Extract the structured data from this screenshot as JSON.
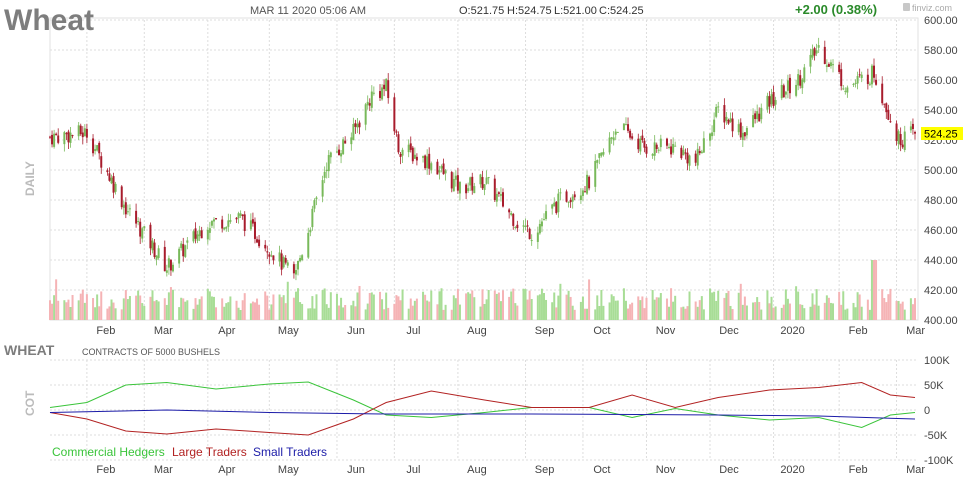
{
  "header": {
    "symbol": "Wheat",
    "datetime": "MAR 11 2020 05:06 AM",
    "open": "O:521.75",
    "high": "H:524.75",
    "low": "L:521.00",
    "close": "C:524.25",
    "change": "+2.00 (0.38%)",
    "brand": "finviz.com"
  },
  "colors": {
    "up": "#78b95a",
    "down": "#a81c2c",
    "vol_up": "#a8dd96",
    "vol_down": "#f5b3b5",
    "price_label_bg": "#ffff00",
    "commercial": "#3ac43a",
    "large": "#b22222",
    "small": "#1c1ca8",
    "change": "#2a8a2a"
  },
  "chart_data": [
    {
      "type": "candlestick",
      "ylabel": "DAILY",
      "y_ticks": [
        "600.00",
        "580.00",
        "560.00",
        "540.00",
        "520.00",
        "500.00",
        "480.00",
        "460.00",
        "440.00",
        "420.00",
        "400.00"
      ],
      "ylim": [
        400,
        600
      ],
      "x_ticks": [
        "Feb",
        "Mar",
        "Apr",
        "May",
        "Jun",
        "Jul",
        "Aug",
        "Sep",
        "Oct",
        "Nov",
        "Dec",
        "2020",
        "Feb",
        "Mar"
      ],
      "last_price_label": "524.25",
      "grid": true,
      "trend_points": [
        {
          "date": "2019-01-14",
          "close": 522
        },
        {
          "date": "2019-02-01",
          "close": 525
        },
        {
          "date": "2019-02-20",
          "close": 475
        },
        {
          "date": "2019-03-12",
          "close": 435
        },
        {
          "date": "2019-04-01",
          "close": 465
        },
        {
          "date": "2019-04-17",
          "close": 468
        },
        {
          "date": "2019-05-01",
          "close": 448
        },
        {
          "date": "2019-05-13",
          "close": 428
        },
        {
          "date": "2019-05-20",
          "close": 460
        },
        {
          "date": "2019-05-29",
          "close": 505
        },
        {
          "date": "2019-06-11",
          "close": 525
        },
        {
          "date": "2019-06-20",
          "close": 550
        },
        {
          "date": "2019-06-27",
          "close": 555
        },
        {
          "date": "2019-07-03",
          "close": 515
        },
        {
          "date": "2019-07-19",
          "close": 505
        },
        {
          "date": "2019-08-02",
          "close": 488
        },
        {
          "date": "2019-08-14",
          "close": 493
        },
        {
          "date": "2019-08-30",
          "close": 465
        },
        {
          "date": "2019-09-06",
          "close": 458
        },
        {
          "date": "2019-09-20",
          "close": 480
        },
        {
          "date": "2019-10-04",
          "close": 492
        },
        {
          "date": "2019-10-18",
          "close": 530
        },
        {
          "date": "2019-10-31",
          "close": 515
        },
        {
          "date": "2019-11-15",
          "close": 515
        },
        {
          "date": "2019-11-25",
          "close": 505
        },
        {
          "date": "2019-12-06",
          "close": 540
        },
        {
          "date": "2019-12-18",
          "close": 525
        },
        {
          "date": "2019-12-31",
          "close": 545
        },
        {
          "date": "2020-01-14",
          "close": 560
        },
        {
          "date": "2020-01-24",
          "close": 582
        },
        {
          "date": "2020-02-07",
          "close": 555
        },
        {
          "date": "2020-02-20",
          "close": 565
        },
        {
          "date": "2020-03-03",
          "close": 520
        },
        {
          "date": "2020-03-11",
          "close": 524.25
        }
      ],
      "volume_panel": true
    },
    {
      "type": "line",
      "title": "WHEAT",
      "subtitle": "CONTRACTS OF 5000 BUSHELS",
      "ylabel": "COT",
      "y_ticks": [
        "100K",
        "50K",
        "0",
        "-50K",
        "-100K"
      ],
      "ylim": [
        -100000,
        100000
      ],
      "x_ticks": [
        "Feb",
        "Mar",
        "Apr",
        "May",
        "Jun",
        "Jul",
        "Aug",
        "Sep",
        "Oct",
        "Nov",
        "Dec",
        "2020",
        "Feb",
        "Mar"
      ],
      "legend": [
        "Commercial Hedgers",
        "Large Traders",
        "Small Traders"
      ],
      "series": [
        {
          "name": "Commercial Hedgers",
          "points": [
            {
              "date": "2019-01-14",
              "value": 5000
            },
            {
              "date": "2019-02-01",
              "value": 15000
            },
            {
              "date": "2019-02-20",
              "value": 50000
            },
            {
              "date": "2019-03-12",
              "value": 55000
            },
            {
              "date": "2019-04-05",
              "value": 42000
            },
            {
              "date": "2019-05-01",
              "value": 52000
            },
            {
              "date": "2019-05-20",
              "value": 56000
            },
            {
              "date": "2019-06-11",
              "value": 20000
            },
            {
              "date": "2019-06-27",
              "value": -10000
            },
            {
              "date": "2019-07-19",
              "value": -15000
            },
            {
              "date": "2019-08-14",
              "value": -5000
            },
            {
              "date": "2019-09-06",
              "value": 5000
            },
            {
              "date": "2019-10-04",
              "value": 5000
            },
            {
              "date": "2019-10-25",
              "value": -15000
            },
            {
              "date": "2019-11-15",
              "value": 3000
            },
            {
              "date": "2019-12-06",
              "value": -10000
            },
            {
              "date": "2019-12-31",
              "value": -20000
            },
            {
              "date": "2020-01-24",
              "value": -15000
            },
            {
              "date": "2020-02-14",
              "value": -35000
            },
            {
              "date": "2020-02-28",
              "value": -10000
            },
            {
              "date": "2020-03-11",
              "value": -5000
            }
          ]
        },
        {
          "name": "Large Traders",
          "points": [
            {
              "date": "2019-01-14",
              "value": -5000
            },
            {
              "date": "2019-02-01",
              "value": -18000
            },
            {
              "date": "2019-02-20",
              "value": -42000
            },
            {
              "date": "2019-03-12",
              "value": -48000
            },
            {
              "date": "2019-04-05",
              "value": -38000
            },
            {
              "date": "2019-05-01",
              "value": -45000
            },
            {
              "date": "2019-05-20",
              "value": -50000
            },
            {
              "date": "2019-06-11",
              "value": -18000
            },
            {
              "date": "2019-06-27",
              "value": 15000
            },
            {
              "date": "2019-07-19",
              "value": 38000
            },
            {
              "date": "2019-08-14",
              "value": 20000
            },
            {
              "date": "2019-09-06",
              "value": 5000
            },
            {
              "date": "2019-10-04",
              "value": 5000
            },
            {
              "date": "2019-10-25",
              "value": 30000
            },
            {
              "date": "2019-11-15",
              "value": 5000
            },
            {
              "date": "2019-12-06",
              "value": 25000
            },
            {
              "date": "2019-12-31",
              "value": 40000
            },
            {
              "date": "2020-01-24",
              "value": 45000
            },
            {
              "date": "2020-02-14",
              "value": 55000
            },
            {
              "date": "2020-02-28",
              "value": 30000
            },
            {
              "date": "2020-03-11",
              "value": 25000
            }
          ]
        },
        {
          "name": "Small Traders",
          "points": [
            {
              "date": "2019-01-14",
              "value": -5000
            },
            {
              "date": "2019-03-12",
              "value": 0
            },
            {
              "date": "2019-05-01",
              "value": -5000
            },
            {
              "date": "2019-06-27",
              "value": -8000
            },
            {
              "date": "2019-09-06",
              "value": -8000
            },
            {
              "date": "2019-12-06",
              "value": -10000
            },
            {
              "date": "2020-01-24",
              "value": -12000
            },
            {
              "date": "2020-03-11",
              "value": -18000
            }
          ]
        }
      ]
    }
  ]
}
